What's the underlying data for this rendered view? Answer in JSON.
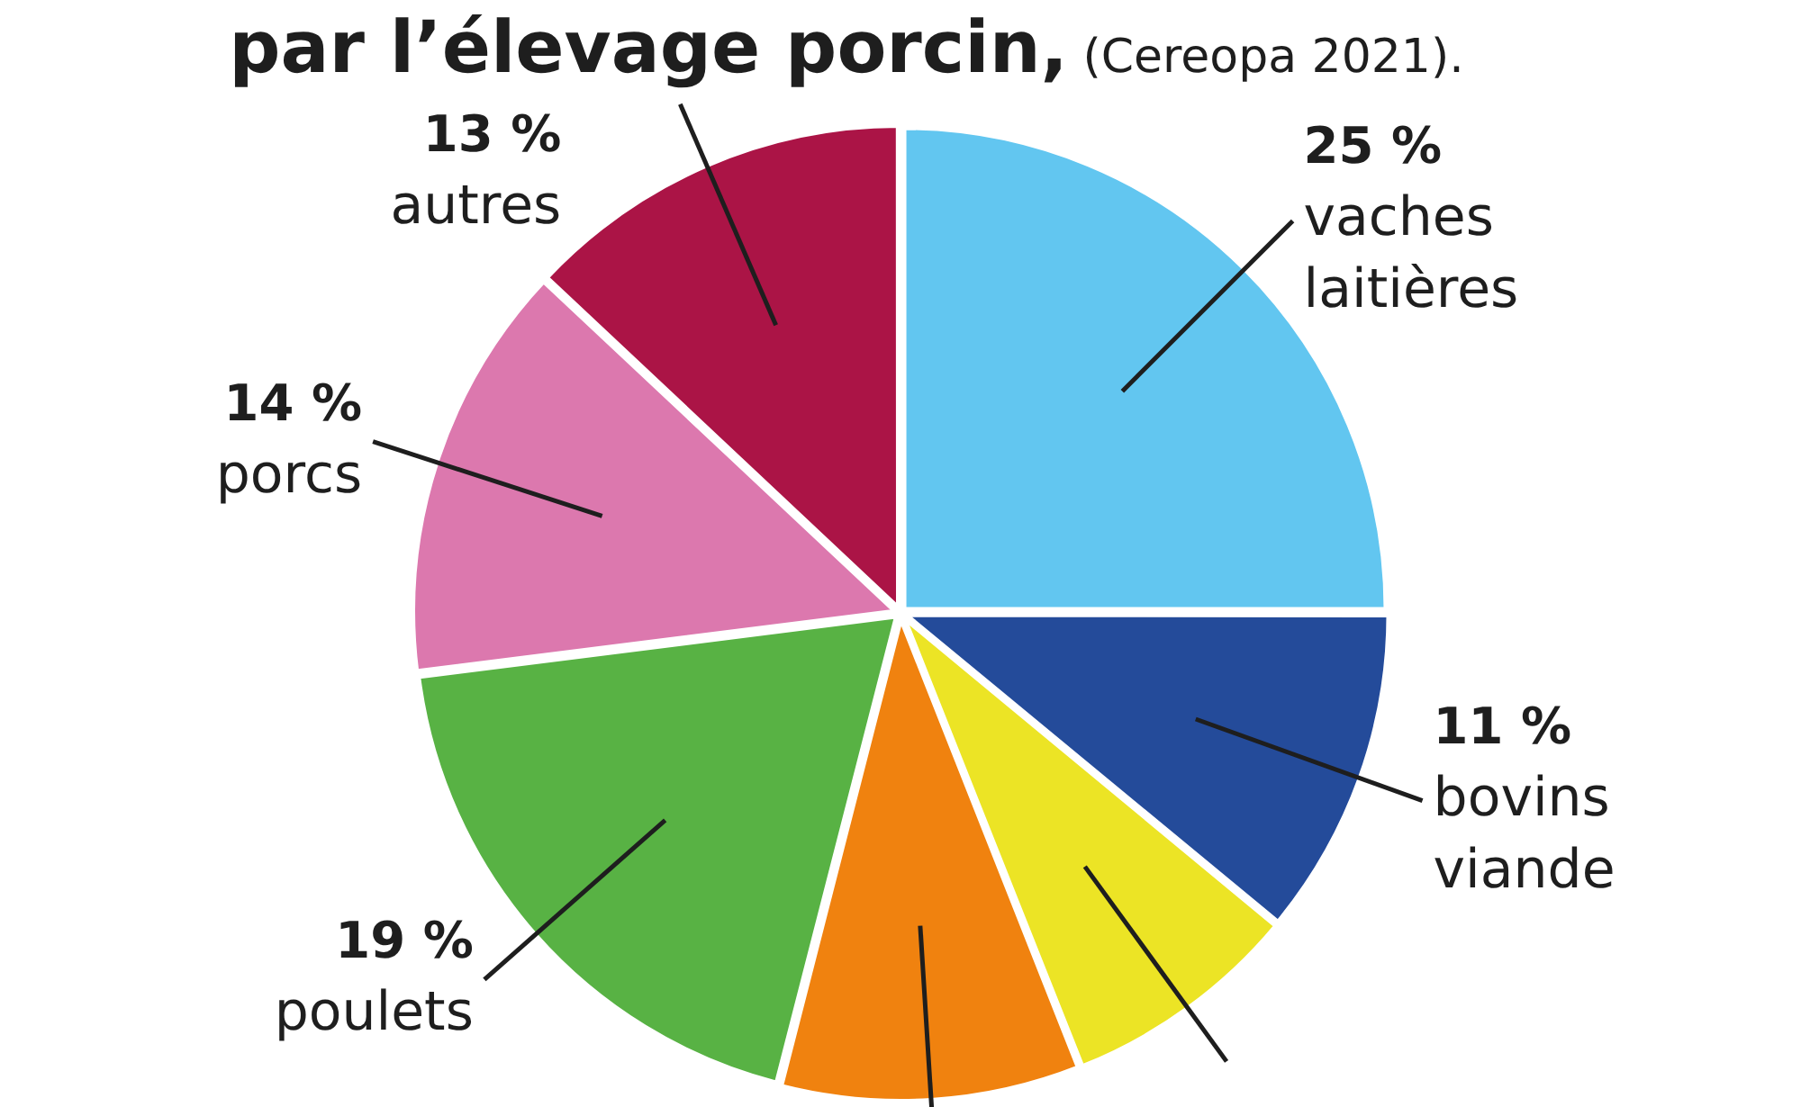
{
  "chart_data": {
    "type": "pie",
    "title": "par l’élevage porcin,",
    "subtitle": "(Cereopa 2021).",
    "categories": [
      "vaches laitières",
      "bovins viande",
      null,
      null,
      "poulets",
      "porcs",
      "autres"
    ],
    "values": [
      25,
      11,
      8,
      10,
      19,
      14,
      13
    ],
    "colors": [
      "#62c6f0",
      "#244b9a",
      "#ece425",
      "#f0820f",
      "#58b244",
      "#dc78ae",
      "#ab1446"
    ],
    "value_labels": [
      "25 %",
      "11 %",
      null,
      null,
      "19 %",
      "14 %",
      "13 %"
    ],
    "legend": false
  }
}
